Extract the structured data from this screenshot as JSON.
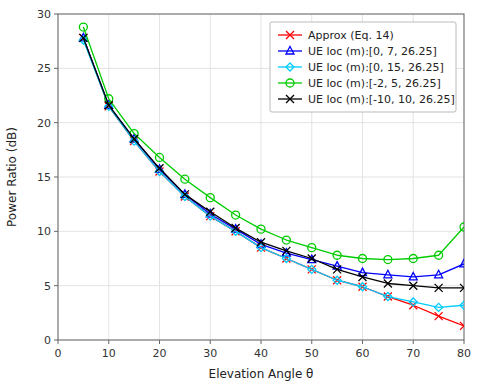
{
  "chart_data": {
    "type": "line",
    "title": "",
    "xlabel": "Elevation Angle θ",
    "ylabel": "Power Ratio (dB)",
    "x": [
      5,
      10,
      15,
      20,
      25,
      30,
      35,
      40,
      45,
      50,
      55,
      60,
      65,
      70,
      75,
      80
    ],
    "xlim": [
      0,
      80
    ],
    "ylim": [
      0,
      30
    ],
    "xticks": [
      0,
      10,
      20,
      30,
      40,
      50,
      60,
      70,
      80
    ],
    "yticks": [
      0,
      5,
      10,
      15,
      20,
      25,
      30
    ],
    "grid": true,
    "legend": "upper right",
    "series": [
      {
        "name": "Approx (Eq. 14)",
        "color": "#ff0000",
        "marker": "x",
        "values": [
          27.8,
          21.5,
          18.3,
          15.5,
          13.2,
          11.4,
          10.0,
          8.5,
          7.5,
          6.5,
          5.5,
          4.9,
          4.0,
          3.2,
          2.2,
          1.3
        ]
      },
      {
        "name": "UE loc (m):[0, 7, 26.25]",
        "color": "#0000ff",
        "marker": "triangle",
        "values": [
          27.8,
          21.6,
          18.5,
          15.7,
          13.4,
          11.6,
          10.2,
          8.8,
          8.0,
          7.4,
          6.8,
          6.2,
          6.0,
          5.8,
          6.0,
          7.0
        ]
      },
      {
        "name": "UE loc (m):[0, 15, 26.25]",
        "color": "#00ccff",
        "marker": "diamond",
        "values": [
          27.6,
          21.5,
          18.3,
          15.5,
          13.2,
          11.4,
          10.0,
          8.5,
          7.5,
          6.5,
          5.5,
          4.9,
          4.0,
          3.5,
          3.0,
          3.2
        ]
      },
      {
        "name": "UE loc (m):[-2, 5, 26.25]",
        "color": "#00cc00",
        "marker": "circle",
        "values": [
          28.8,
          22.2,
          19.0,
          16.8,
          14.8,
          13.1,
          11.5,
          10.2,
          9.2,
          8.5,
          7.8,
          7.5,
          7.4,
          7.5,
          7.8,
          10.4
        ]
      },
      {
        "name": "UE loc (m):[-10, 10, 26.25]",
        "color": "#000000",
        "marker": "x",
        "values": [
          27.8,
          21.6,
          18.5,
          15.8,
          13.4,
          11.8,
          10.3,
          9.0,
          8.2,
          7.5,
          6.5,
          5.8,
          5.2,
          5.0,
          4.8,
          4.8
        ]
      }
    ]
  }
}
